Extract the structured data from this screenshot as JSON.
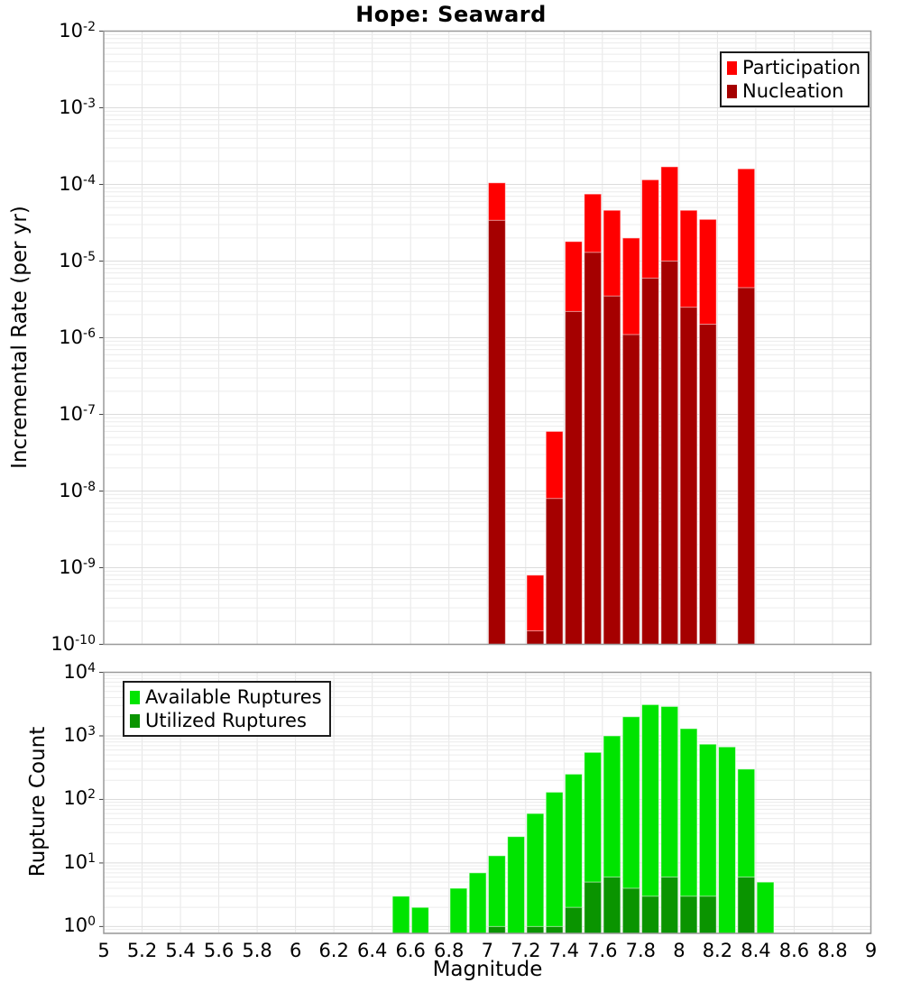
{
  "title": "Hope: Seaward",
  "axes": {
    "x_label": "Magnitude",
    "top_y_label": "Incremental Rate (per yr)",
    "bottom_y_label": "Rupture Count",
    "x_tick_labels": [
      "5",
      "5.2",
      "5.4",
      "5.6",
      "5.8",
      "6",
      "6.2",
      "6.4",
      "6.6",
      "6.8",
      "7",
      "7.2",
      "7.4",
      "7.6",
      "7.8",
      "8",
      "8.2",
      "8.4",
      "8.6",
      "8.8",
      "9"
    ],
    "top_y_exponents": [
      -2,
      -3,
      -4,
      -5,
      -6,
      -7,
      -8,
      -9,
      -10
    ],
    "bottom_y_exponents": [
      4,
      3,
      2,
      1,
      0
    ]
  },
  "legends": {
    "top": [
      {
        "label": "Participation",
        "color": "#ff0000"
      },
      {
        "label": "Nucleation",
        "color": "#a50000"
      }
    ],
    "bottom": [
      {
        "label": "Available Ruptures",
        "color": "#00e400"
      },
      {
        "label": "Utilized Ruptures",
        "color": "#0a9400"
      }
    ]
  },
  "colors": {
    "participation": "#ff0000",
    "nucleation": "#a50000",
    "available": "#00e400",
    "utilized": "#0a9400",
    "grid_minor": "#ececec",
    "grid_major": "#dcdcdc",
    "grid_vertical": "#e6e6e6",
    "panel_border": "#9a9a9a"
  },
  "chart_data": [
    {
      "type": "bar",
      "panel": "top",
      "title": "Hope: Seaward",
      "ylabel": "Incremental Rate (per yr)",
      "yscale": "log",
      "ylim": [
        1e-10,
        0.01
      ],
      "xlim": [
        5,
        9
      ],
      "bin_width": 0.1,
      "grid": true,
      "legend_position": "upper right",
      "x_bins": [
        7.0,
        7.2,
        7.3,
        7.4,
        7.5,
        7.6,
        7.7,
        7.8,
        7.9,
        8.0,
        8.1,
        8.3
      ],
      "series": [
        {
          "name": "Participation",
          "values": [
            0.000105,
            8e-10,
            6e-08,
            1.8e-05,
            7.5e-05,
            4.6e-05,
            2e-05,
            0.000115,
            0.00017,
            4.6e-05,
            3.5e-05,
            0.00016
          ]
        },
        {
          "name": "Nucleation",
          "values": [
            3.4e-05,
            1.5e-10,
            8e-09,
            2.2e-06,
            1.3e-05,
            3.5e-06,
            1.1e-06,
            6e-06,
            1e-05,
            2.5e-06,
            1.5e-06,
            4.5e-06
          ]
        }
      ]
    },
    {
      "type": "bar",
      "panel": "bottom",
      "ylabel": "Rupture Count",
      "xlabel": "Magnitude",
      "yscale": "log",
      "ylim": [
        1,
        10000
      ],
      "xlim": [
        5,
        9
      ],
      "bin_width": 0.1,
      "grid": true,
      "legend_position": "upper left",
      "x_bins": [
        6.5,
        6.6,
        6.8,
        6.9,
        7.0,
        7.1,
        7.2,
        7.3,
        7.4,
        7.5,
        7.6,
        7.7,
        7.8,
        7.9,
        8.0,
        8.1,
        8.2,
        8.3,
        8.4
      ],
      "series": [
        {
          "name": "Available Ruptures",
          "values": [
            3,
            2,
            4,
            7,
            13,
            26,
            60,
            130,
            250,
            550,
            1000,
            2000,
            3100,
            2900,
            1300,
            740,
            670,
            300,
            5
          ]
        },
        {
          "name": "Utilized Ruptures",
          "values": [
            0,
            0,
            0,
            0,
            1,
            0,
            1,
            1,
            2,
            5,
            6,
            4,
            3,
            6,
            3,
            3,
            0,
            6,
            0
          ]
        }
      ]
    }
  ]
}
